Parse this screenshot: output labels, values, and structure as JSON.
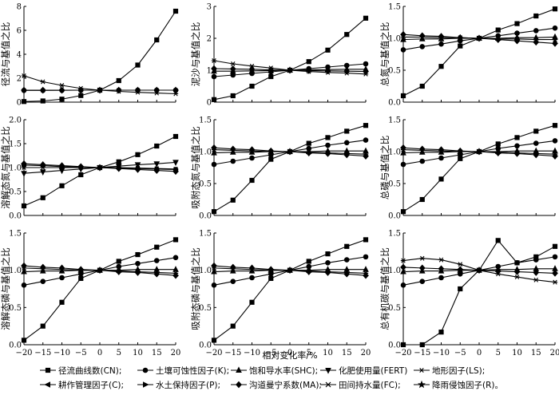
{
  "figure": {
    "xlabel": "相对变化率/%"
  },
  "legend": {
    "items": [
      {
        "name": "径流曲线数(CN);",
        "marker": "square"
      },
      {
        "name": "土壤可蚀性因子(K);",
        "marker": "circle"
      },
      {
        "name": "饱和导水率(SHC);",
        "marker": "triangle"
      },
      {
        "name": "化肥使用量(FERT)",
        "marker": "triangle-down"
      },
      {
        "name": "地形因子(LS);",
        "marker": "asterisk"
      },
      {
        "name": "耕作管理因子(C);",
        "marker": "triangle-left"
      },
      {
        "name": "水土保持因子(P);",
        "marker": "triangle-right"
      },
      {
        "name": "沟道曼宁系数(MA);",
        "marker": "diamond"
      },
      {
        "name": "田间持水量(FC);",
        "marker": "x"
      },
      {
        "name": "降雨侵蚀因子(R)。",
        "marker": "star"
      }
    ]
  },
  "chart_data": [
    {
      "type": "line",
      "ylabel": "径流与基值之比",
      "x": [
        -20,
        -15,
        -10,
        -5,
        0,
        5,
        10,
        15,
        20
      ],
      "xticks": [
        -20,
        -15,
        -10,
        -5,
        0,
        5,
        10,
        15,
        20
      ],
      "ylim": [
        0,
        8
      ],
      "yticks": [
        0,
        2,
        4,
        6,
        8
      ],
      "series": [
        {
          "marker": "square",
          "values": [
            0.05,
            0.1,
            0.25,
            0.55,
            1.0,
            1.8,
            3.1,
            5.2,
            7.6
          ]
        },
        {
          "marker": "asterisk",
          "values": [
            2.2,
            1.7,
            1.4,
            1.15,
            1.0,
            0.9,
            0.82,
            0.76,
            0.7
          ]
        },
        {
          "marker": "circle",
          "values": [
            0.98,
            0.98,
            0.99,
            1.0,
            1.0,
            1.0,
            1.0,
            1.0,
            1.0
          ]
        },
        {
          "marker": "diamond",
          "values": [
            1.0,
            1.0,
            1.0,
            1.0,
            1.0,
            1.0,
            1.0,
            1.0,
            1.0
          ]
        }
      ]
    },
    {
      "type": "line",
      "ylabel": "泥沙与基值之比",
      "x": [
        -20,
        -15,
        -10,
        -5,
        0,
        5,
        10,
        15,
        20
      ],
      "xticks": [
        -20,
        -15,
        -10,
        -5,
        0,
        5,
        10,
        15,
        20
      ],
      "ylim": [
        0,
        3
      ],
      "yticks": [
        0,
        1,
        2,
        3
      ],
      "series": [
        {
          "marker": "square",
          "values": [
            0.08,
            0.2,
            0.5,
            0.8,
            1.0,
            1.27,
            1.63,
            2.12,
            2.63
          ]
        },
        {
          "marker": "asterisk",
          "values": [
            1.3,
            1.2,
            1.13,
            1.07,
            1.0,
            0.96,
            0.93,
            0.91,
            0.88
          ]
        },
        {
          "marker": "circle",
          "values": [
            0.8,
            0.85,
            0.9,
            0.95,
            1.0,
            1.05,
            1.1,
            1.15,
            1.2
          ]
        },
        {
          "marker": "diamond",
          "values": [
            1.05,
            1.04,
            1.03,
            1.01,
            1.0,
            0.99,
            0.98,
            0.97,
            0.96
          ]
        },
        {
          "marker": "triangle",
          "values": [
            0.97,
            0.97,
            0.98,
            0.99,
            1.0,
            1.01,
            1.02,
            1.03,
            1.03
          ]
        }
      ]
    },
    {
      "type": "line",
      "ylabel": "总氮与基值之比",
      "x": [
        -20,
        -15,
        -10,
        -5,
        0,
        5,
        10,
        15,
        20
      ],
      "xticks": [
        -20,
        -15,
        -10,
        -5,
        0,
        5,
        10,
        15,
        20
      ],
      "ylim": [
        0,
        1.5
      ],
      "yticks": [
        0,
        0.5,
        1.0,
        1.5
      ],
      "series": [
        {
          "marker": "square",
          "values": [
            0.1,
            0.25,
            0.56,
            0.88,
            1.0,
            1.13,
            1.23,
            1.35,
            1.46
          ]
        },
        {
          "marker": "circle",
          "values": [
            0.82,
            0.87,
            0.91,
            0.96,
            1.0,
            1.04,
            1.08,
            1.12,
            1.16
          ]
        },
        {
          "marker": "diamond",
          "values": [
            1.06,
            1.04,
            1.03,
            1.01,
            1.0,
            0.98,
            0.96,
            0.94,
            0.92
          ]
        },
        {
          "marker": "triangle",
          "values": [
            0.98,
            0.99,
            0.99,
            1.0,
            1.0,
            1.0,
            1.01,
            1.01,
            1.02
          ]
        },
        {
          "marker": "asterisk",
          "values": [
            1.02,
            1.02,
            1.01,
            1.01,
            1.0,
            0.99,
            0.99,
            0.98,
            0.98
          ]
        }
      ]
    },
    {
      "type": "line",
      "ylabel": "溶解态氮与基值之比",
      "x": [
        -20,
        -15,
        -10,
        -5,
        0,
        5,
        10,
        15,
        20
      ],
      "xticks": [
        -20,
        -15,
        -10,
        -5,
        0,
        5,
        10,
        15,
        20
      ],
      "ylim": [
        0,
        2.0
      ],
      "yticks": [
        0,
        0.5,
        1.0,
        1.5,
        2.0
      ],
      "series": [
        {
          "marker": "square",
          "values": [
            0.2,
            0.37,
            0.62,
            0.85,
            1.0,
            1.12,
            1.27,
            1.45,
            1.65
          ]
        },
        {
          "marker": "triangle-down",
          "values": [
            0.88,
            0.91,
            0.94,
            0.97,
            1.0,
            1.03,
            1.06,
            1.08,
            1.11
          ]
        },
        {
          "marker": "diamond",
          "values": [
            1.08,
            1.06,
            1.04,
            1.02,
            1.0,
            0.98,
            0.96,
            0.94,
            0.92
          ]
        },
        {
          "marker": "circle",
          "values": [
            1.05,
            1.04,
            1.02,
            1.01,
            1.0,
            0.99,
            0.98,
            0.97,
            0.96
          ]
        },
        {
          "marker": "asterisk",
          "values": [
            1.0,
            1.0,
            1.0,
            1.0,
            1.0,
            1.0,
            0.99,
            0.98,
            0.97
          ]
        }
      ]
    },
    {
      "type": "line",
      "ylabel": "吸附态氮与基值之比",
      "x": [
        -20,
        -15,
        -10,
        -5,
        0,
        5,
        10,
        15,
        20
      ],
      "xticks": [
        -20,
        -15,
        -10,
        -5,
        0,
        5,
        10,
        15,
        20
      ],
      "ylim": [
        0,
        1.5
      ],
      "yticks": [
        0,
        0.5,
        1.0,
        1.5
      ],
      "series": [
        {
          "marker": "square",
          "values": [
            0.06,
            0.24,
            0.55,
            0.88,
            1.0,
            1.13,
            1.22,
            1.32,
            1.41
          ]
        },
        {
          "marker": "circle",
          "values": [
            0.8,
            0.85,
            0.9,
            0.95,
            1.0,
            1.05,
            1.1,
            1.14,
            1.18
          ]
        },
        {
          "marker": "diamond",
          "values": [
            1.06,
            1.04,
            1.03,
            1.01,
            1.0,
            0.98,
            0.97,
            0.95,
            0.93
          ]
        },
        {
          "marker": "asterisk",
          "values": [
            1.03,
            1.02,
            1.01,
            1.0,
            1.0,
            0.99,
            0.98,
            0.97,
            0.96
          ]
        },
        {
          "marker": "triangle",
          "values": [
            0.98,
            0.99,
            0.99,
            1.0,
            1.0,
            1.0,
            1.01,
            1.01,
            1.01
          ]
        }
      ]
    },
    {
      "type": "line",
      "ylabel": "总磷与基值之比",
      "x": [
        -20,
        -15,
        -10,
        -5,
        0,
        5,
        10,
        15,
        20
      ],
      "xticks": [
        -20,
        -15,
        -10,
        -5,
        0,
        5,
        10,
        15,
        20
      ],
      "ylim": [
        0,
        1.5
      ],
      "yticks": [
        0,
        0.5,
        1.0,
        1.5
      ],
      "series": [
        {
          "marker": "square",
          "values": [
            0.06,
            0.25,
            0.57,
            0.89,
            1.0,
            1.12,
            1.22,
            1.32,
            1.41
          ]
        },
        {
          "marker": "circle",
          "values": [
            0.8,
            0.85,
            0.9,
            0.95,
            1.0,
            1.05,
            1.09,
            1.13,
            1.17
          ]
        },
        {
          "marker": "diamond",
          "values": [
            1.06,
            1.04,
            1.03,
            1.01,
            1.0,
            0.98,
            0.97,
            0.95,
            0.93
          ]
        },
        {
          "marker": "asterisk",
          "values": [
            1.03,
            1.02,
            1.01,
            1.0,
            1.0,
            0.99,
            0.98,
            0.97,
            0.96
          ]
        },
        {
          "marker": "triangle",
          "values": [
            0.98,
            0.99,
            0.99,
            1.0,
            1.0,
            1.0,
            1.01,
            1.01,
            1.01
          ]
        }
      ]
    },
    {
      "type": "line",
      "ylabel": "溶解态磷与基值之比",
      "x": [
        -20,
        -15,
        -10,
        -5,
        0,
        5,
        10,
        15,
        20
      ],
      "xticks": [
        -20,
        -15,
        -10,
        -5,
        0,
        5,
        10,
        15,
        20
      ],
      "ylim": [
        0,
        1.5
      ],
      "yticks": [
        0,
        0.5,
        1.0,
        1.5
      ],
      "series": [
        {
          "marker": "square",
          "values": [
            0.06,
            0.25,
            0.57,
            0.89,
            1.0,
            1.12,
            1.21,
            1.31,
            1.41
          ]
        },
        {
          "marker": "circle",
          "values": [
            0.8,
            0.85,
            0.9,
            0.95,
            1.0,
            1.05,
            1.09,
            1.13,
            1.17
          ]
        },
        {
          "marker": "diamond",
          "values": [
            1.06,
            1.04,
            1.03,
            1.01,
            1.0,
            0.98,
            0.97,
            0.95,
            0.93
          ]
        },
        {
          "marker": "asterisk",
          "values": [
            1.03,
            1.02,
            1.01,
            1.0,
            1.0,
            0.99,
            0.98,
            0.97,
            0.96
          ]
        },
        {
          "marker": "triangle",
          "values": [
            0.98,
            0.99,
            0.99,
            1.0,
            1.0,
            1.0,
            1.01,
            1.01,
            1.01
          ]
        }
      ]
    },
    {
      "type": "line",
      "ylabel": "吸附态磷与基值之比",
      "x": [
        -20,
        -15,
        -10,
        -5,
        0,
        5,
        10,
        15,
        20
      ],
      "xticks": [
        -20,
        -15,
        -10,
        -5,
        0,
        5,
        10,
        15,
        20
      ],
      "ylim": [
        0,
        1.5
      ],
      "yticks": [
        0,
        0.5,
        1.0,
        1.5
      ],
      "series": [
        {
          "marker": "square",
          "values": [
            0.06,
            0.25,
            0.57,
            0.89,
            1.0,
            1.12,
            1.22,
            1.32,
            1.41
          ]
        },
        {
          "marker": "circle",
          "values": [
            0.8,
            0.85,
            0.9,
            0.95,
            1.0,
            1.05,
            1.1,
            1.14,
            1.18
          ]
        },
        {
          "marker": "diamond",
          "values": [
            1.06,
            1.04,
            1.03,
            1.01,
            1.0,
            0.98,
            0.97,
            0.95,
            0.93
          ]
        },
        {
          "marker": "asterisk",
          "values": [
            1.03,
            1.02,
            1.01,
            1.0,
            1.0,
            0.99,
            0.98,
            0.97,
            0.96
          ]
        },
        {
          "marker": "triangle",
          "values": [
            0.98,
            0.99,
            0.99,
            1.0,
            1.0,
            1.0,
            1.01,
            1.01,
            1.01
          ]
        }
      ]
    },
    {
      "type": "line",
      "ylabel": "总有机碳与基值之比",
      "x": [
        -20,
        -15,
        -10,
        -5,
        0,
        5,
        10,
        15,
        20
      ],
      "xticks": [
        -20,
        -15,
        -10,
        -5,
        0,
        5,
        10,
        15,
        20
      ],
      "ylim": [
        0,
        1.5
      ],
      "yticks": [
        0,
        0.5,
        1.0,
        1.5
      ],
      "series": [
        {
          "marker": "square",
          "values": [
            0.0,
            0.0,
            0.17,
            0.75,
            1.0,
            1.4,
            1.1,
            1.18,
            1.32
          ]
        },
        {
          "marker": "asterisk",
          "values": [
            1.13,
            1.16,
            1.14,
            1.08,
            1.0,
            0.95,
            0.91,
            0.87,
            0.84
          ]
        },
        {
          "marker": "circle",
          "values": [
            0.8,
            0.85,
            0.9,
            0.95,
            1.0,
            1.05,
            1.1,
            1.14,
            1.18
          ]
        },
        {
          "marker": "diamond",
          "values": [
            1.04,
            1.03,
            1.02,
            1.01,
            1.0,
            0.99,
            0.98,
            0.97,
            0.96
          ]
        },
        {
          "marker": "triangle",
          "values": [
            0.98,
            0.99,
            0.99,
            1.0,
            1.0,
            1.01,
            1.01,
            1.02,
            1.02
          ]
        }
      ]
    }
  ]
}
